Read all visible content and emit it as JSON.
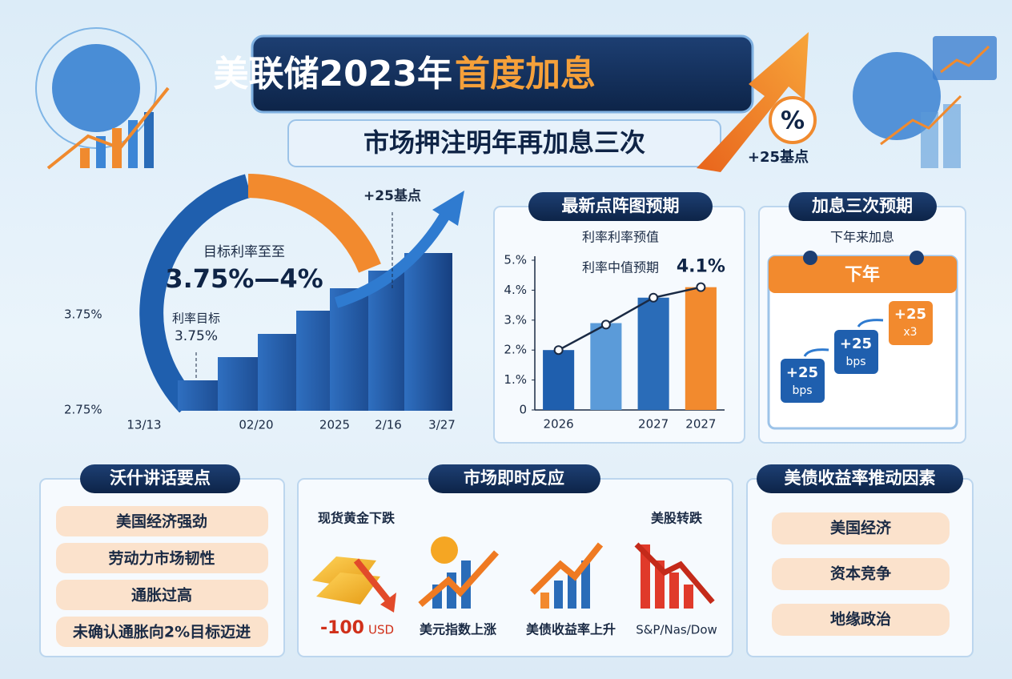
{
  "header": {
    "title_main": "美联储2023年",
    "title_highlight": "首度加息",
    "subtitle": "市场押注明年再加息三次",
    "badge_symbol": "%",
    "badge_text": "+25基点"
  },
  "rate_panel": {
    "label_top": "目标利率至至",
    "value_big": "3.75%—4%",
    "label_small": "利率目标",
    "value_small": "3.75%",
    "arrow_label": "+25基点",
    "y_labels": [
      "3.75%",
      "2.75%"
    ],
    "x_labels": [
      "13/13",
      "02/20",
      "2025",
      "2/16",
      "3/27"
    ]
  },
  "chart_data": {
    "type": "bar",
    "title": "最新点阵图预期",
    "subtitle": "利率利率预值",
    "annotation": "利率中值预期",
    "categories": [
      "2026",
      null,
      "2027",
      "2027"
    ],
    "series": [
      {
        "colors": [
          "#1f5fae",
          "#5b9bd9",
          "#2a6cb8",
          "#f28a2e"
        ],
        "values": [
          2,
          2.9,
          3.75,
          4.1
        ],
        "value_labels": [
          null,
          null,
          null,
          "4.1%"
        ]
      },
      {
        "type": "line",
        "color": "#1a2a44",
        "values": [
          2,
          2.85,
          3.75,
          4.1
        ]
      }
    ],
    "ylim": [
      0,
      5
    ],
    "yticks": [
      0,
      {
        "value": 1,
        "label": "1.%"
      },
      {
        "value": 2,
        "label": "2.%"
      },
      {
        "value": 3,
        "label": "3.%"
      },
      {
        "value": 4,
        "label": "4.%"
      },
      {
        "value": 5,
        "label": "5.%"
      }
    ],
    "grid": false
  },
  "calendar": {
    "title": "加息三次预期",
    "subtitle": "下年来加息",
    "month": "下年",
    "steps": [
      {
        "line1": "+25",
        "line2": "bps"
      },
      {
        "line1": "+25",
        "line2": "bps"
      },
      {
        "line1": "+25",
        "line2": "x3"
      }
    ]
  },
  "speech": {
    "title": "沃什讲话要点",
    "items": [
      "美国经济强劲",
      "劳动力市场韧性",
      "通胀过高",
      "未确认通胀向2%目标迈进"
    ]
  },
  "market": {
    "title": "市场即时反应",
    "gold_label": "现货黄金下跌",
    "gold_change": "-100",
    "gold_unit": "USD",
    "usd_label": "美元指数上涨",
    "yield_label": "美债收益率上升",
    "stocks_title": "美股转跌",
    "stocks_label": "S&P/Nas/Dow"
  },
  "drivers": {
    "title": "美债收益率推动因素",
    "items": [
      "美国经济",
      "资本竞争",
      "地缘政治"
    ]
  }
}
